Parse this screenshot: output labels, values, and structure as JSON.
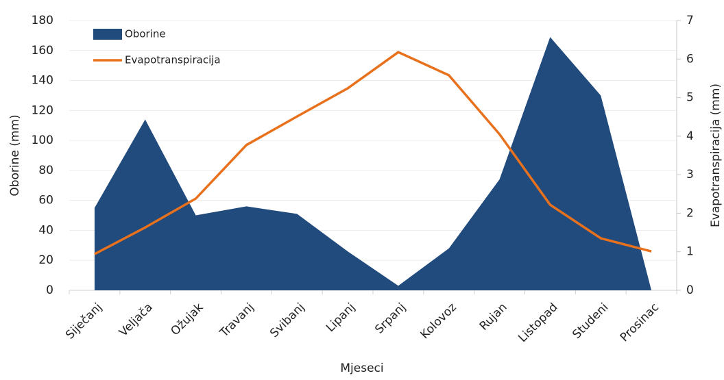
{
  "chart_data": {
    "type": "area",
    "x_label": "Mjeseci",
    "y_label": "Oborine (mm)",
    "y2_label": "Evapotranspiracija (mm)",
    "categories": [
      "Siječanj",
      "Veljača",
      "Ožujak",
      "Travanj",
      "Svibanj",
      "Lipanj",
      "Srpanj",
      "Kolovoz",
      "Rujan",
      "Listopad",
      "Studeni",
      "Prosinac"
    ],
    "series": [
      {
        "name": "Oborine",
        "type": "area",
        "color": "#214a7d",
        "values": [
          55,
          114,
          50,
          56,
          51,
          26,
          3,
          28,
          74,
          169,
          130,
          0
        ]
      },
      {
        "name": "Evapotranspiracija",
        "type": "line",
        "axis": "y2",
        "color": "#e8711d",
        "values": [
          0.94,
          1.63,
          2.38,
          3.77,
          4.51,
          5.24,
          6.18,
          5.58,
          4.05,
          2.22,
          1.35,
          1.01
        ]
      }
    ],
    "ylim": [
      0,
      180
    ],
    "yticks": [
      0,
      20,
      40,
      60,
      80,
      100,
      120,
      140,
      160,
      180
    ],
    "y2lim": [
      0,
      7
    ],
    "y2ticks": [
      0,
      1,
      2,
      3,
      4,
      5,
      6,
      7
    ],
    "grid": true,
    "legend": "top-left"
  }
}
